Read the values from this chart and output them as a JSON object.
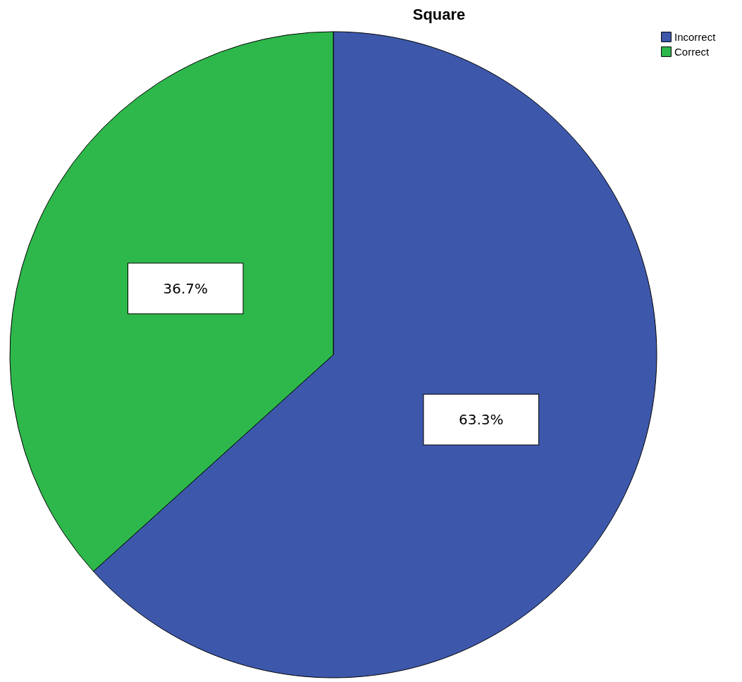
{
  "chart_data": {
    "type": "pie",
    "title": "Square",
    "categories": [
      "Incorrect",
      "Correct"
    ],
    "values": [
      63.3,
      36.7
    ],
    "colors": [
      "#3d58ab",
      "#2eb84b"
    ],
    "value_labels": [
      "63.3%",
      "36.7%"
    ],
    "legend": "top right"
  }
}
